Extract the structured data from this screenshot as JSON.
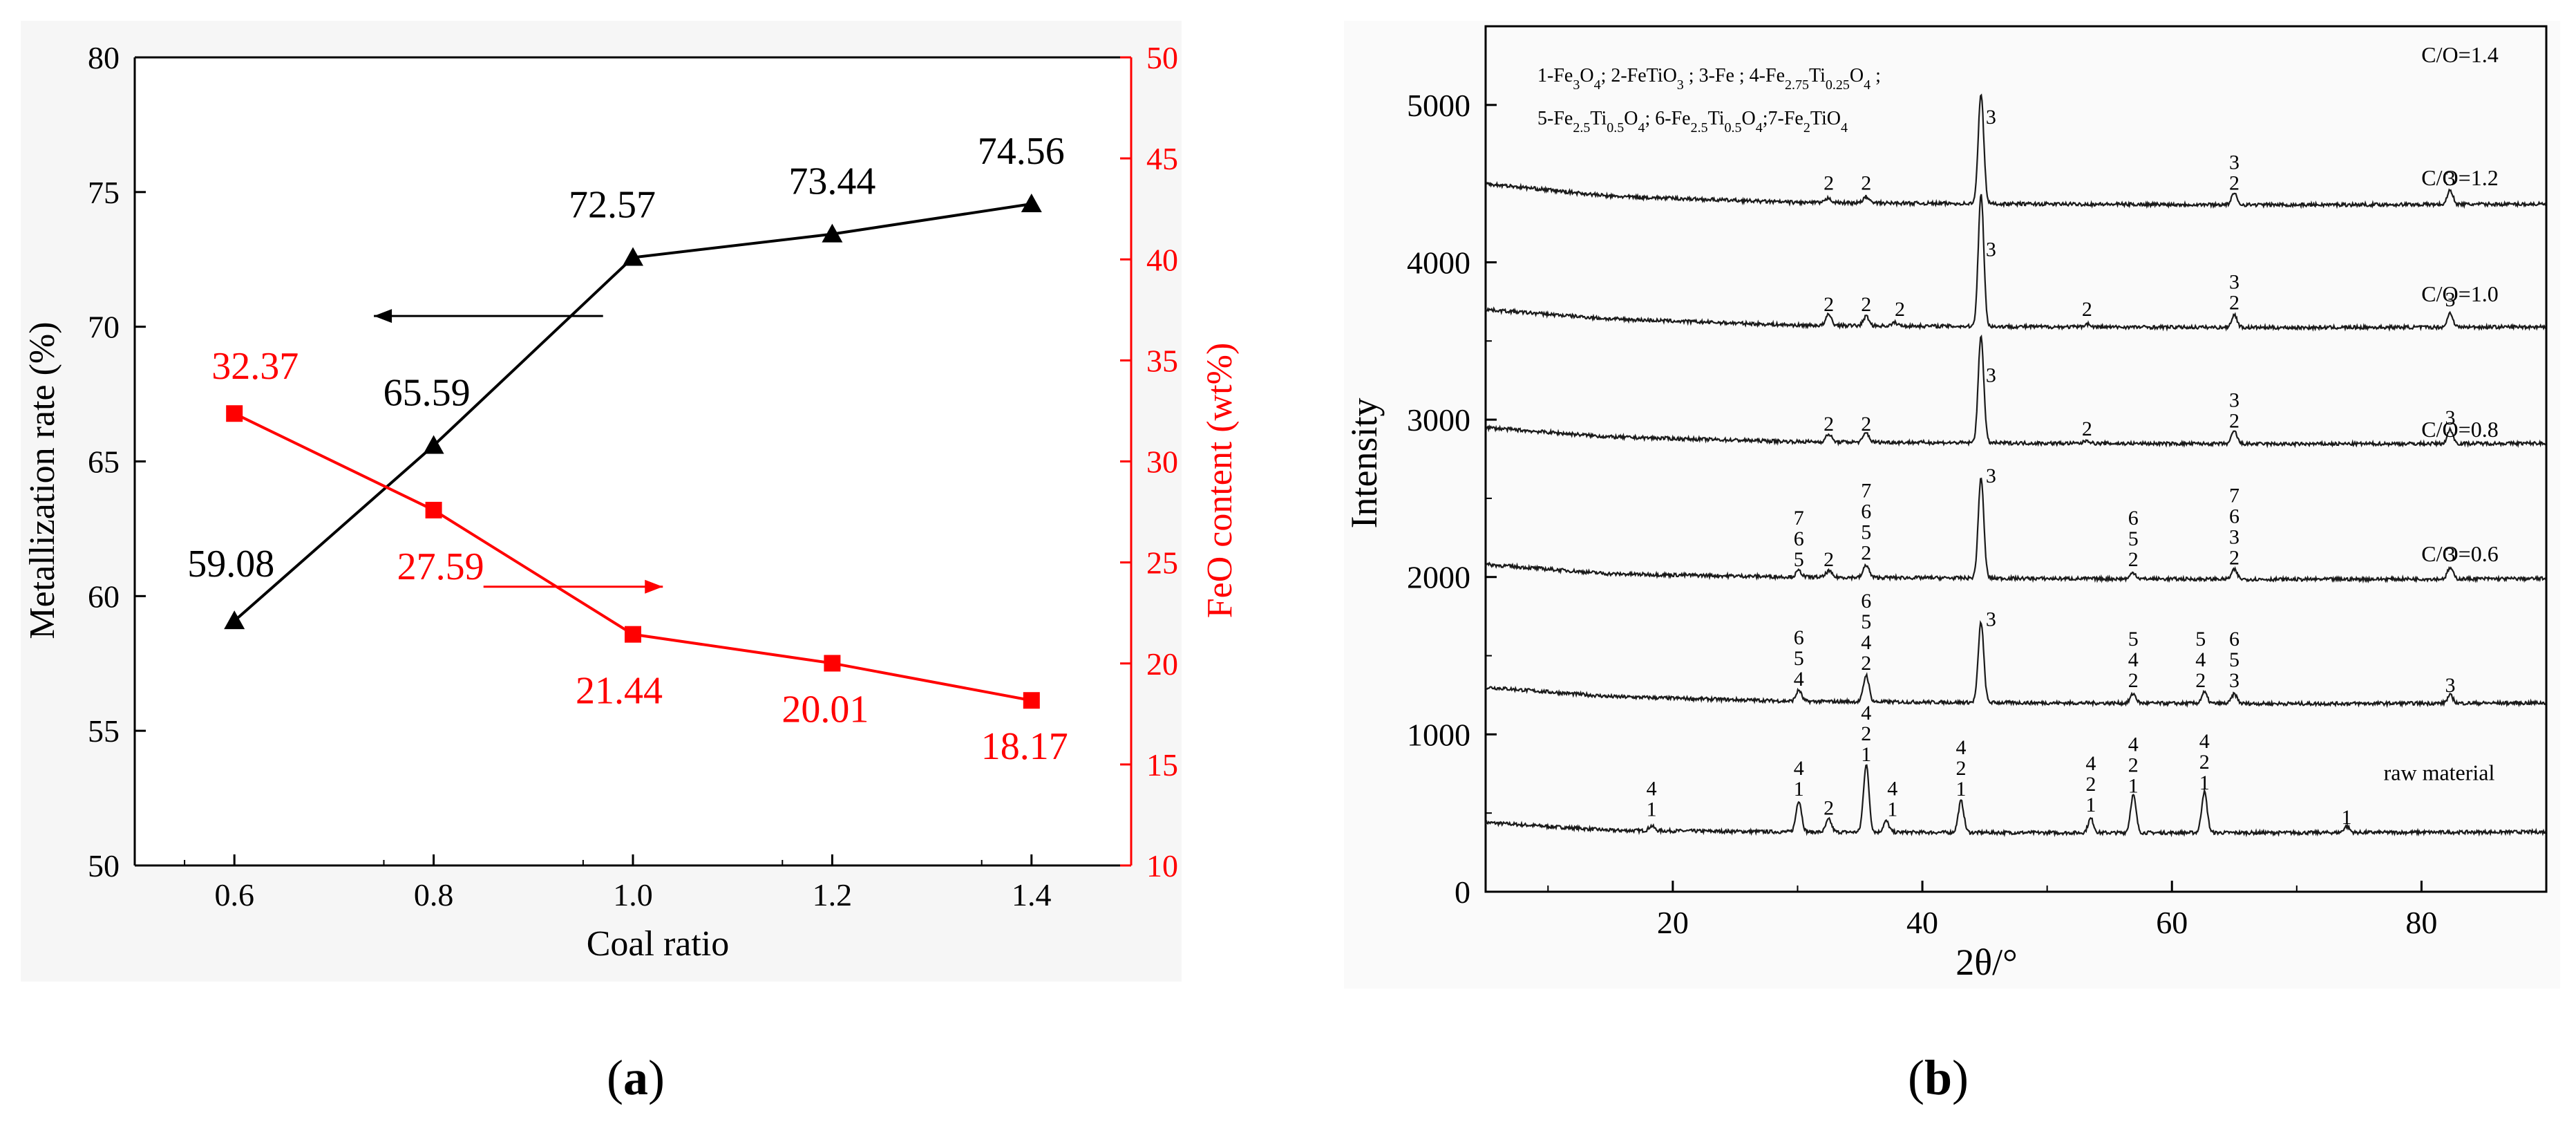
{
  "chart_data": [
    {
      "panel_label": "a",
      "type": "line",
      "xlabel": "Coal ratio",
      "x": [
        0.6,
        0.8,
        1.0,
        1.2,
        1.4
      ],
      "xticks": [
        "0.6",
        "0.8",
        "1.0",
        "1.2",
        "1.4"
      ],
      "xlim": [
        0.5,
        1.5
      ],
      "ylabel": "Metallization rate (%)",
      "ylim": [
        50,
        80
      ],
      "yticks": [
        "50",
        "55",
        "60",
        "65",
        "70",
        "75",
        "80"
      ],
      "y2label": "FeO content (wt%)",
      "y2lim": [
        10,
        50
      ],
      "y2ticks": [
        "10",
        "15",
        "20",
        "25",
        "30",
        "35",
        "40",
        "45",
        "50"
      ],
      "series": [
        {
          "axis": "left",
          "color": "#000000",
          "marker": "triangle",
          "values": [
            59.08,
            65.59,
            72.57,
            73.44,
            74.56
          ],
          "labels": [
            "59.08",
            "65.59",
            "72.57",
            "73.44",
            "74.56"
          ]
        },
        {
          "axis": "right",
          "color": "#ff0000",
          "marker": "square",
          "values": [
            32.37,
            27.59,
            21.44,
            20.01,
            18.17
          ],
          "labels": [
            "32.37",
            "27.59",
            "21.44",
            "20.01",
            "18.17"
          ]
        }
      ],
      "arrows": [
        {
          "series": 0,
          "direction": "left",
          "from": [
            0.97,
            70.4
          ],
          "to": [
            0.74,
            70.4
          ]
        },
        {
          "series": 1,
          "direction": "right",
          "from": [
            0.85,
            23.8
          ],
          "to": [
            1.03,
            23.8
          ]
        }
      ]
    },
    {
      "panel_label": "b",
      "type": "line",
      "xlabel": "2θ/°",
      "ylabel": "Intensity",
      "xlim": [
        5,
        90
      ],
      "ylim": [
        0,
        5500
      ],
      "xticks": [
        "20",
        "40",
        "60",
        "80"
      ],
      "yticks": [
        "0",
        "1000",
        "2000",
        "3000",
        "4000",
        "5000"
      ],
      "legend_lines": [
        [
          "1-Fe",
          {
            "sub": "3"
          },
          "O",
          {
            "sub": "4"
          },
          "; 2-FeTiO",
          {
            "sub": "3"
          },
          " ; 3-Fe ; 4-Fe",
          {
            "sub": "2.75"
          },
          "Ti",
          {
            "sub": "0.25"
          },
          "O",
          {
            "sub": "4"
          },
          " ;"
        ],
        [
          "5-Fe",
          {
            "sub": "2.5"
          },
          "Ti",
          {
            "sub": "0.5"
          },
          "O",
          {
            "sub": "4"
          },
          "; 6-Fe",
          {
            "sub": "2.5"
          },
          "Ti",
          {
            "sub": "0.5"
          },
          "O",
          {
            "sub": "4"
          },
          ";7-Fe",
          {
            "sub": "2"
          },
          "TiO",
          {
            "sub": "4"
          }
        ]
      ],
      "series": [
        {
          "name": "raw material",
          "baseline": [
            [
              5,
              440
            ],
            [
              15,
              390
            ],
            [
              30,
              380
            ],
            [
              50,
              375
            ],
            [
              70,
              375
            ],
            [
              90,
              380
            ]
          ],
          "peaks": [
            [
              18.3,
              30
            ],
            [
              30.1,
              200
            ],
            [
              32.5,
              80
            ],
            [
              35.5,
              430
            ],
            [
              37.1,
              70
            ],
            [
              43.1,
              200
            ],
            [
              53.5,
              90
            ],
            [
              56.9,
              240
            ],
            [
              62.6,
              260
            ],
            [
              74.0,
              40
            ]
          ],
          "annotations": [
            {
              "x": 18.3,
              "y": 480,
              "text": "4\n1"
            },
            {
              "x": 30.1,
              "y": 610,
              "text": "4\n1"
            },
            {
              "x": 32.5,
              "y": 490,
              "text": "2"
            },
            {
              "x": 35.5,
              "y": 830,
              "text": "4\n2\n1"
            },
            {
              "x": 37.6,
              "y": 480,
              "text": "4\n1"
            },
            {
              "x": 43.1,
              "y": 610,
              "text": "4\n2\n1"
            },
            {
              "x": 53.5,
              "y": 510,
              "text": "4\n2\n1"
            },
            {
              "x": 56.9,
              "y": 630,
              "text": "4\n2\n1"
            },
            {
              "x": 62.6,
              "y": 650,
              "text": "4\n2\n1"
            },
            {
              "x": 74.0,
              "y": 430,
              "text": "1"
            }
          ]
        },
        {
          "name": "C/O=0.6",
          "baseline": [
            [
              5,
              1300
            ],
            [
              15,
              1240
            ],
            [
              30,
              1210
            ],
            [
              50,
              1200
            ],
            [
              70,
              1195
            ],
            [
              90,
              1200
            ]
          ],
          "peaks": [
            [
              30.1,
              70
            ],
            [
              35.5,
              170
            ],
            [
              44.7,
              510
            ],
            [
              56.9,
              60
            ],
            [
              62.6,
              70
            ],
            [
              65.0,
              60
            ],
            [
              82.3,
              50
            ]
          ],
          "annotations": [
            {
              "x": 30.1,
              "y": 1310,
              "text": "6\n5\n4"
            },
            {
              "x": 35.5,
              "y": 1410,
              "text": "6\n5\n4\n2"
            },
            {
              "x": 45.5,
              "y": 1690,
              "text": "3"
            },
            {
              "x": 56.9,
              "y": 1300,
              "text": "5\n4\n2"
            },
            {
              "x": 62.3,
              "y": 1300,
              "text": "5\n4\n2"
            },
            {
              "x": 65.0,
              "y": 1300,
              "text": "6\n5\n3"
            },
            {
              "x": 82.3,
              "y": 1270,
              "text": "3"
            }
          ]
        },
        {
          "name": "C/O=0.8",
          "baseline": [
            [
              5,
              2080
            ],
            [
              15,
              2020
            ],
            [
              30,
              2000
            ],
            [
              50,
              1990
            ],
            [
              70,
              1985
            ],
            [
              90,
              1990
            ]
          ],
          "peaks": [
            [
              30.1,
              40
            ],
            [
              32.5,
              40
            ],
            [
              35.5,
              80
            ],
            [
              44.7,
              640
            ],
            [
              56.9,
              40
            ],
            [
              65.0,
              60
            ],
            [
              82.3,
              70
            ]
          ],
          "annotations": [
            {
              "x": 30.1,
              "y": 2070,
              "text": "7\n6\n5"
            },
            {
              "x": 32.5,
              "y": 2070,
              "text": "2"
            },
            {
              "x": 35.5,
              "y": 2110,
              "text": "7\n6\n5\n2"
            },
            {
              "x": 45.5,
              "y": 2600,
              "text": "3"
            },
            {
              "x": 56.9,
              "y": 2070,
              "text": "6\n5\n2"
            },
            {
              "x": 65.0,
              "y": 2080,
              "text": "7\n6\n3\n2"
            },
            {
              "x": 82.3,
              "y": 2100,
              "text": "3"
            }
          ]
        },
        {
          "name": "C/O=1.0",
          "baseline": [
            [
              5,
              2950
            ],
            [
              15,
              2890
            ],
            [
              30,
              2860
            ],
            [
              50,
              2850
            ],
            [
              70,
              2845
            ],
            [
              90,
              2850
            ]
          ],
          "peaks": [
            [
              32.5,
              50
            ],
            [
              35.5,
              60
            ],
            [
              44.7,
              680
            ],
            [
              53.2,
              20
            ],
            [
              65.0,
              80
            ],
            [
              82.3,
              90
            ]
          ],
          "annotations": [
            {
              "x": 32.5,
              "y": 2930,
              "text": "2"
            },
            {
              "x": 35.5,
              "y": 2930,
              "text": "2"
            },
            {
              "x": 45.5,
              "y": 3240,
              "text": "3"
            },
            {
              "x": 53.2,
              "y": 2900,
              "text": "2"
            },
            {
              "x": 65.0,
              "y": 2950,
              "text": "3\n2"
            },
            {
              "x": 82.3,
              "y": 2970,
              "text": "3"
            }
          ]
        },
        {
          "name": "C/O=1.2",
          "baseline": [
            [
              5,
              3700
            ],
            [
              15,
              3640
            ],
            [
              30,
              3600
            ],
            [
              50,
              3590
            ],
            [
              70,
              3585
            ],
            [
              90,
              3590
            ]
          ],
          "peaks": [
            [
              32.5,
              70
            ],
            [
              35.5,
              60
            ],
            [
              37.8,
              20
            ],
            [
              44.7,
              840
            ],
            [
              53.2,
              20
            ],
            [
              65.0,
              80
            ],
            [
              82.3,
              90
            ]
          ],
          "annotations": [
            {
              "x": 32.5,
              "y": 3690,
              "text": "2"
            },
            {
              "x": 35.5,
              "y": 3690,
              "text": "2"
            },
            {
              "x": 38.2,
              "y": 3660,
              "text": "2"
            },
            {
              "x": 45.5,
              "y": 4040,
              "text": "3"
            },
            {
              "x": 53.2,
              "y": 3660,
              "text": "2"
            },
            {
              "x": 65.0,
              "y": 3700,
              "text": "3\n2"
            },
            {
              "x": 82.3,
              "y": 3720,
              "text": "3"
            }
          ]
        },
        {
          "name": "C/O=1.4",
          "baseline": [
            [
              5,
              4500
            ],
            [
              15,
              4420
            ],
            [
              30,
              4380
            ],
            [
              50,
              4370
            ],
            [
              70,
              4365
            ],
            [
              90,
              4370
            ]
          ],
          "peaks": [
            [
              32.5,
              30
            ],
            [
              35.5,
              40
            ],
            [
              44.7,
              700
            ],
            [
              65.0,
              70
            ],
            [
              82.3,
              90
            ]
          ],
          "annotations": [
            {
              "x": 32.5,
              "y": 4460,
              "text": "2"
            },
            {
              "x": 35.5,
              "y": 4460,
              "text": "2"
            },
            {
              "x": 45.5,
              "y": 4880,
              "text": "3"
            },
            {
              "x": 65.0,
              "y": 4460,
              "text": "3\n2"
            },
            {
              "x": 82.3,
              "y": 4490,
              "text": "3"
            }
          ]
        }
      ]
    }
  ]
}
